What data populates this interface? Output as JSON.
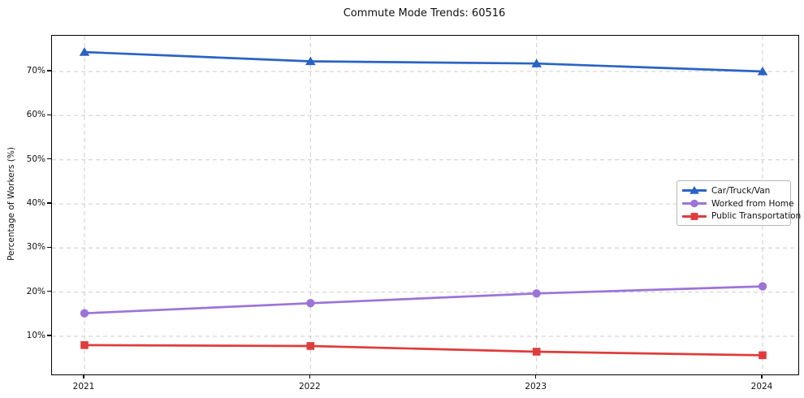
{
  "chart_data": {
    "type": "line",
    "title": "Commute Mode Trends: 60516",
    "xlabel": "",
    "ylabel": "Percentage of Workers (%)",
    "x_tick_labels": [
      "2021",
      "2022",
      "2023",
      "2024"
    ],
    "y_ticks": [
      10,
      20,
      30,
      40,
      50,
      60,
      70
    ],
    "y_tick_suffix": "%",
    "ylim": [
      1.35,
      78.1
    ],
    "grid": {
      "style": "dashed",
      "color": "#cccccc",
      "horizontal": true,
      "vertical": true
    },
    "legend": {
      "position": "center-right inside plot",
      "border_color": "#b7b7b7",
      "background": "#ffffff"
    },
    "axes_color": "#000000",
    "background": "#ffffff",
    "series": [
      {
        "name": "Car/Truck/Van",
        "marker": "triangle",
        "color": "#2a63c5",
        "values": [
          74.4,
          72.3,
          71.8,
          70.0
        ]
      },
      {
        "name": "Worked from Home",
        "marker": "circle",
        "color": "#9c74d8",
        "values": [
          15.2,
          17.5,
          19.7,
          21.3
        ]
      },
      {
        "name": "Public Transportation",
        "marker": "square",
        "color": "#e03c3c",
        "values": [
          8.0,
          7.8,
          6.5,
          5.7
        ]
      }
    ]
  }
}
